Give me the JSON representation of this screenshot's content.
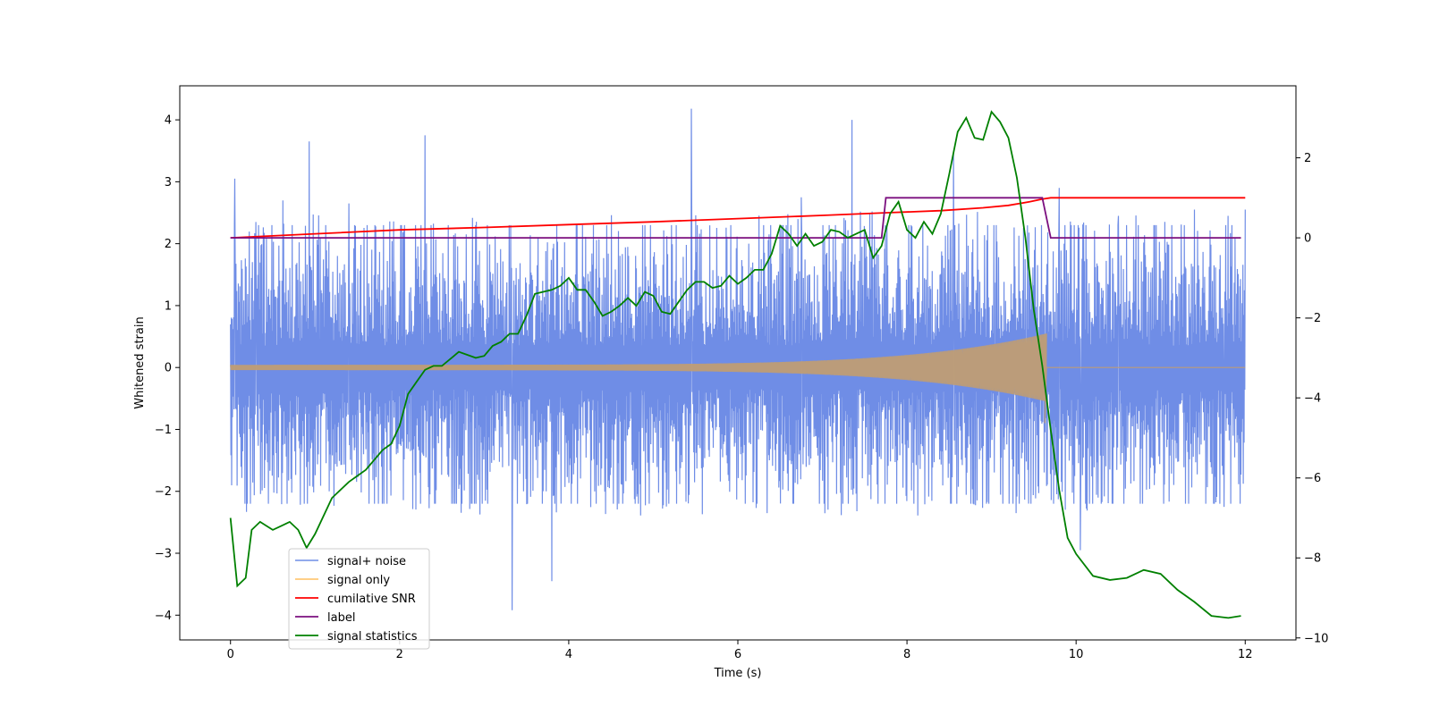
{
  "chart_data": {
    "type": "line",
    "xlabel": "Time (s)",
    "ylabel": "Whitened strain",
    "xlim": [
      -0.6,
      12.6
    ],
    "ylim": [
      -4.4,
      4.55
    ],
    "y2lim": [
      -10.05,
      3.8
    ],
    "x_ticks": [
      0,
      2,
      4,
      6,
      8,
      10,
      12
    ],
    "y_ticks": [
      -4,
      -3,
      -2,
      -1,
      0,
      1,
      2,
      3,
      4
    ],
    "y2_ticks": [
      -10,
      -8,
      -6,
      -4,
      -2,
      0,
      2
    ],
    "grid": false,
    "legend_position": "lower-left",
    "series": [
      {
        "name": "signal+ noise",
        "color": "#6f8de6",
        "axis": "left",
        "kind": "noise",
        "x_range": [
          0,
          12
        ],
        "typical_amplitude": 1.8,
        "peaks": [
          [
            0.05,
            3.05
          ],
          [
            0.3,
            2.35
          ],
          [
            0.62,
            2.7
          ],
          [
            0.93,
            3.65
          ],
          [
            1.4,
            2.65
          ],
          [
            2.3,
            3.75
          ],
          [
            3.33,
            -3.92
          ],
          [
            3.8,
            -3.45
          ],
          [
            5.45,
            4.18
          ],
          [
            6.75,
            2.75
          ],
          [
            7.35,
            4.0
          ],
          [
            8.55,
            3.5
          ],
          [
            9.8,
            2.9
          ],
          [
            10.05,
            -2.95
          ],
          [
            10.5,
            2.45
          ],
          [
            11.4,
            2.55
          ],
          [
            11.75,
            -2.25
          ],
          [
            12.0,
            2.55
          ]
        ]
      },
      {
        "name": "signal only",
        "color": "#ffbf60",
        "axis": "left",
        "kind": "chirp",
        "x_range": [
          0,
          9.65
        ],
        "start_amplitude": 0.05,
        "end_amplitude": 0.55,
        "final_dip": -0.9
      },
      {
        "name": "cumilative SNR",
        "color": "#ff0000",
        "axis": "right",
        "x": [
          0,
          1,
          2,
          3,
          4,
          5,
          6,
          7,
          7.8,
          8.4,
          8.9,
          9.2,
          9.45,
          9.6,
          9.7,
          12
        ],
        "values": [
          0.0,
          0.1,
          0.2,
          0.26,
          0.33,
          0.4,
          0.48,
          0.56,
          0.63,
          0.68,
          0.75,
          0.81,
          0.9,
          0.97,
          1.0,
          1.0
        ]
      },
      {
        "name": "label",
        "color": "#7b0f7f",
        "axis": "right",
        "x": [
          0,
          7.7,
          7.75,
          9.6,
          9.7,
          11.95
        ],
        "values": [
          0,
          0,
          1,
          1,
          0,
          0
        ]
      },
      {
        "name": "signal statistics",
        "color": "#008000",
        "axis": "right",
        "x": [
          0,
          0.08,
          0.18,
          0.25,
          0.35,
          0.5,
          0.6,
          0.7,
          0.8,
          0.9,
          1.0,
          1.2,
          1.4,
          1.6,
          1.8,
          1.9,
          2.0,
          2.1,
          2.2,
          2.3,
          2.4,
          2.5,
          2.7,
          2.9,
          3.0,
          3.1,
          3.2,
          3.3,
          3.4,
          3.5,
          3.6,
          3.7,
          3.8,
          3.9,
          4.0,
          4.1,
          4.2,
          4.3,
          4.4,
          4.5,
          4.6,
          4.7,
          4.8,
          4.9,
          5.0,
          5.1,
          5.2,
          5.3,
          5.4,
          5.5,
          5.6,
          5.7,
          5.8,
          5.9,
          6.0,
          6.1,
          6.2,
          6.3,
          6.4,
          6.5,
          6.6,
          6.7,
          6.8,
          6.9,
          7.0,
          7.1,
          7.2,
          7.3,
          7.4,
          7.5,
          7.6,
          7.7,
          7.8,
          7.9,
          8.0,
          8.1,
          8.2,
          8.3,
          8.4,
          8.5,
          8.6,
          8.7,
          8.8,
          8.9,
          9.0,
          9.1,
          9.2,
          9.3,
          9.4,
          9.5,
          9.6,
          9.7,
          9.8,
          9.9,
          10.0,
          10.2,
          10.4,
          10.6,
          10.8,
          11.0,
          11.2,
          11.4,
          11.6,
          11.8,
          11.95
        ],
        "values": [
          -7.0,
          -8.7,
          -8.5,
          -7.3,
          -7.1,
          -7.3,
          -7.2,
          -7.1,
          -7.3,
          -7.75,
          -7.4,
          -6.5,
          -6.1,
          -5.8,
          -5.3,
          -5.15,
          -4.7,
          -3.9,
          -3.6,
          -3.3,
          -3.2,
          -3.2,
          -2.85,
          -3.0,
          -2.95,
          -2.7,
          -2.6,
          -2.4,
          -2.4,
          -1.95,
          -1.4,
          -1.35,
          -1.3,
          -1.2,
          -1.0,
          -1.3,
          -1.3,
          -1.6,
          -1.95,
          -1.85,
          -1.7,
          -1.5,
          -1.7,
          -1.35,
          -1.45,
          -1.85,
          -1.9,
          -1.6,
          -1.3,
          -1.1,
          -1.1,
          -1.25,
          -1.2,
          -0.95,
          -1.15,
          -1.0,
          -0.8,
          -0.8,
          -0.4,
          0.3,
          0.1,
          -0.2,
          0.1,
          -0.2,
          -0.1,
          0.2,
          0.15,
          0.0,
          0.1,
          0.2,
          -0.5,
          -0.2,
          0.6,
          0.9,
          0.2,
          0.0,
          0.4,
          0.1,
          0.6,
          1.6,
          2.65,
          3.0,
          2.5,
          2.45,
          3.15,
          2.9,
          2.5,
          1.5,
          0.0,
          -1.8,
          -3.2,
          -4.8,
          -6.3,
          -7.5,
          -7.9,
          -8.45,
          -8.55,
          -8.5,
          -8.3,
          -8.4,
          -8.8,
          -9.1,
          -9.45,
          -9.5,
          -9.45
        ]
      }
    ]
  }
}
